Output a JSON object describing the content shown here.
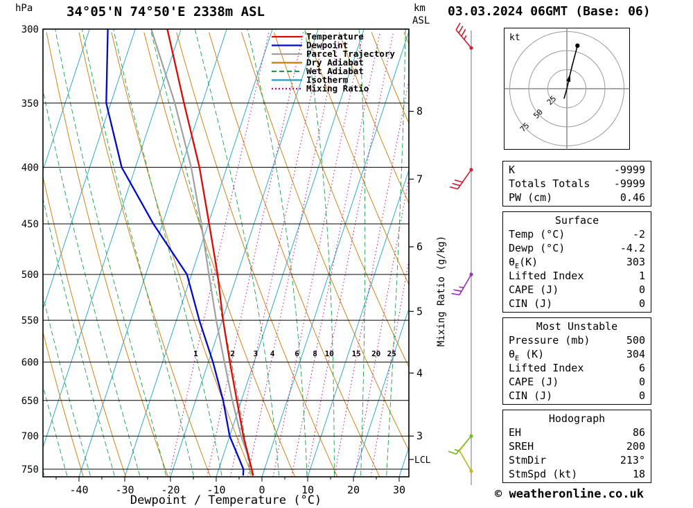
{
  "header": {
    "station": "34°05'N 74°50'E 2338m ASL",
    "datetime": "03.03.2024 06GMT (Base: 06)"
  },
  "footer": {
    "copyright": "© weatheronline.co.uk"
  },
  "chart_data": {
    "type": "skewt-log-p",
    "title": "34°05'N 74°50'E 2338m ASL",
    "pressure_axis": {
      "label": "hPa",
      "ticks": [
        300,
        350,
        400,
        450,
        500,
        550,
        600,
        650,
        700,
        750
      ],
      "top": 300,
      "bottom": 762
    },
    "temp_axis": {
      "label": "Dewpoint / Temperature (°C)",
      "ticks": [
        -40,
        -30,
        -20,
        -10,
        0,
        10,
        20,
        30
      ]
    },
    "height_axis": {
      "label_top": "km",
      "label_bottom": "ASL",
      "ticks": [
        {
          "label": "8",
          "p": 356
        },
        {
          "label": "7",
          "p": 410
        },
        {
          "label": "6",
          "p": 472
        },
        {
          "label": "5",
          "p": 540
        },
        {
          "label": "4",
          "p": 614
        },
        {
          "label": "3",
          "p": 700
        }
      ],
      "lcl": {
        "label": "LCL",
        "p": 735
      }
    },
    "mixing_ratio_axis": {
      "label": "Mixing Ratio (g/kg)",
      "values": [
        1,
        2,
        3,
        4,
        6,
        8,
        10,
        15,
        20,
        25
      ],
      "color": "#cc0088"
    },
    "legend": [
      {
        "label": "Temperature",
        "color": "#e10600",
        "dash": null
      },
      {
        "label": "Dewpoint",
        "color": "#0008cc",
        "dash": null
      },
      {
        "label": "Parcel Trajectory",
        "color": "#a0a0a0",
        "dash": null
      },
      {
        "label": "Dry Adiabat",
        "color": "#cc7700",
        "dash": null
      },
      {
        "label": "Wet Adiabat",
        "color": "#14a04a",
        "dash": "7 4"
      },
      {
        "label": "Isotherm",
        "color": "#1ba1cc",
        "dash": null
      },
      {
        "label": "Mixing Ratio",
        "color": "#cc0088",
        "dash": "2 3"
      }
    ],
    "series": {
      "temperature": {
        "name": "Temperature",
        "color": "#e10600",
        "points": [
          [
            760,
            -2
          ],
          [
            750,
            -2.8
          ],
          [
            700,
            -7
          ],
          [
            650,
            -11
          ],
          [
            600,
            -15.3
          ],
          [
            550,
            -19.8
          ],
          [
            500,
            -24.3
          ],
          [
            450,
            -29.8
          ],
          [
            400,
            -36
          ],
          [
            350,
            -44
          ],
          [
            300,
            -53
          ]
        ]
      },
      "dewpoint": {
        "name": "Dewpoint",
        "color": "#0008cc",
        "points": [
          [
            760,
            -4.2
          ],
          [
            750,
            -4.6
          ],
          [
            700,
            -10
          ],
          [
            650,
            -14
          ],
          [
            600,
            -19
          ],
          [
            550,
            -25
          ],
          [
            500,
            -31
          ],
          [
            450,
            -42
          ],
          [
            400,
            -53
          ],
          [
            350,
            -61
          ],
          [
            300,
            -66
          ]
        ]
      },
      "parcel": {
        "name": "Parcel Trajectory",
        "color": "#a0a0a0",
        "points": [
          [
            760,
            -2
          ],
          [
            730,
            -4.5
          ],
          [
            700,
            -7.5
          ],
          [
            650,
            -12
          ],
          [
            600,
            -16.5
          ],
          [
            550,
            -21.3
          ],
          [
            500,
            -26.2
          ],
          [
            450,
            -31.5
          ],
          [
            400,
            -37.8
          ],
          [
            350,
            -46
          ],
          [
            300,
            -56.5
          ]
        ]
      }
    },
    "background": {
      "isotherm_color": "#1ba1cc",
      "isotherm_step": 10,
      "dry_adiabat_color": "#cc7700",
      "dry_adiabat_step": 10,
      "wet_adiabat_color": "#14a04a",
      "wet_adiabat_step": 5,
      "mixing_color": "#cc0088"
    },
    "winds": [
      {
        "p": 312,
        "dir": 320,
        "speed": 35,
        "color": "#cc2233"
      },
      {
        "p": 402,
        "dir": 215,
        "speed": 30,
        "color": "#cc2233"
      },
      {
        "p": 500,
        "dir": 210,
        "speed": 25,
        "color": "#9933bb"
      },
      {
        "p": 700,
        "dir": 220,
        "speed": 15,
        "color": "#77bb22"
      },
      {
        "p": 753,
        "dir": 330,
        "speed": 10,
        "color": "#bbbb22"
      }
    ]
  },
  "hodograph": {
    "unit_label": "kt",
    "rings": [
      25,
      50,
      75
    ],
    "trace_kt": [
      [
        -3.7,
        -13
      ],
      [
        0,
        0
      ],
      [
        2.8,
        13
      ],
      [
        6.5,
        28.7
      ],
      [
        13.9,
        56.5
      ]
    ],
    "arrow_index": 2,
    "marker_index": 4
  },
  "panel": {
    "sections": [
      {
        "name": "indices",
        "title": null,
        "rows": [
          {
            "label": "K",
            "value": "-9999"
          },
          {
            "label": "Totals Totals",
            "value": "-9999"
          },
          {
            "label": "PW (cm)",
            "value": "0.46"
          }
        ]
      },
      {
        "name": "surface",
        "title": "Surface",
        "rows": [
          {
            "label": "Temp (°C)",
            "value": "-2"
          },
          {
            "label": "Dewp (°C)",
            "value": "-4.2"
          },
          {
            "label": "θE(K)",
            "value": "303"
          },
          {
            "label": "Lifted Index",
            "value": "1"
          },
          {
            "label": "CAPE (J)",
            "value": "0"
          },
          {
            "label": "CIN (J)",
            "value": "0"
          }
        ]
      },
      {
        "name": "most-unstable",
        "title": "Most Unstable",
        "rows": [
          {
            "label": "Pressure (mb)",
            "value": "500"
          },
          {
            "label": "θE (K)",
            "value": "304"
          },
          {
            "label": "Lifted Index",
            "value": "6"
          },
          {
            "label": "CAPE (J)",
            "value": "0"
          },
          {
            "label": "CIN (J)",
            "value": "0"
          }
        ]
      },
      {
        "name": "hodograph-stats",
        "title": "Hodograph",
        "rows": [
          {
            "label": "EH",
            "value": "86"
          },
          {
            "label": "SREH",
            "value": "200"
          },
          {
            "label": "StmDir",
            "value": "213°"
          },
          {
            "label": "StmSpd (kt)",
            "value": "18"
          }
        ]
      }
    ]
  }
}
